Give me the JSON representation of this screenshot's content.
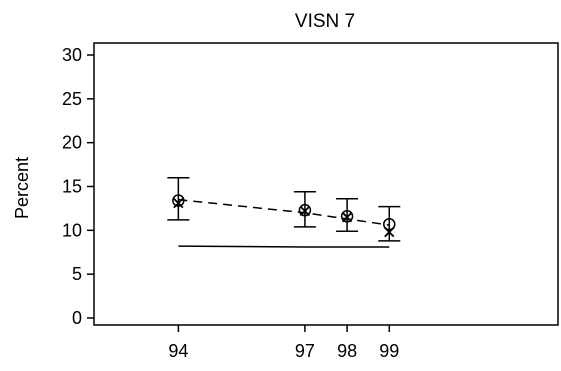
{
  "chart_data": {
    "type": "line",
    "title": "VISN  7",
    "ylabel": "Percent",
    "xlabel": "",
    "x": [
      94,
      97,
      98,
      99
    ],
    "x_tick_labels": [
      "94",
      "97",
      "98",
      "99"
    ],
    "xlim": [
      92,
      103
    ],
    "ylim": [
      0,
      30
    ],
    "y_ticks": [
      0,
      5,
      10,
      15,
      20,
      25,
      30
    ],
    "grid": false,
    "legend": "none",
    "series": [
      {
        "marker": "circle",
        "style": "error-bars",
        "values": [
          13.4,
          12.3,
          11.6,
          10.7
        ],
        "lower": [
          11.2,
          10.4,
          9.9,
          8.8
        ],
        "upper": [
          16.0,
          14.4,
          13.6,
          12.7
        ]
      },
      {
        "marker": "x",
        "style": "points",
        "values": [
          13.1,
          12.2,
          11.5,
          9.8
        ]
      },
      {
        "style": "dashed",
        "values": [
          13.5,
          12.0,
          11.3,
          10.6
        ]
      },
      {
        "style": "solid",
        "values": [
          8.2,
          8.1,
          8.1,
          8.1
        ]
      }
    ]
  }
}
